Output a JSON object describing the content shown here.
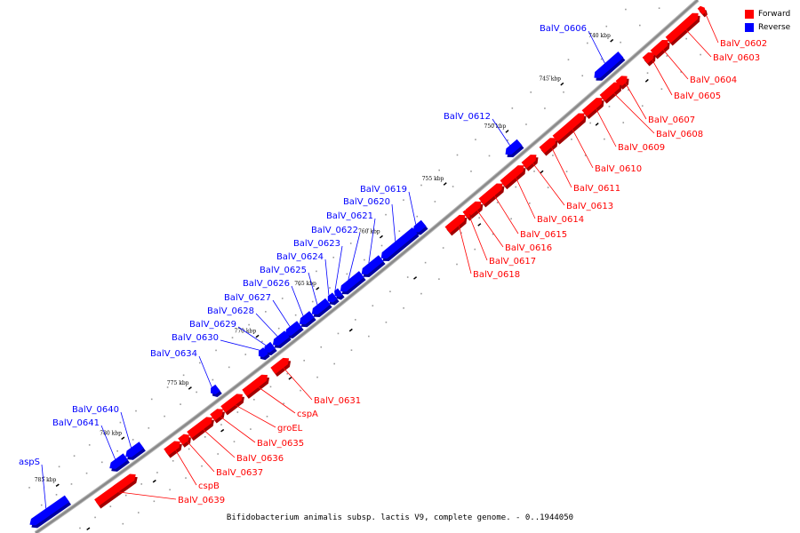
{
  "colors": {
    "forward": "#ff0000",
    "reverse": "#0000ff",
    "backbone": "#8a8a8a"
  },
  "legend": {
    "forward": "Forward",
    "reverse": "Reverse"
  },
  "caption": "Bifidobacterium animalis subsp. lactis V9, complete genome. - 0..1944050",
  "ticks": [
    "740 kbp",
    "745 kbp",
    "750 kbp",
    "755 kbp",
    "760 kbp",
    "765 kbp",
    "770 kbp",
    "775 kbp",
    "780 kbp",
    "785 kbp"
  ],
  "forward_genes": [
    "BalV_0602",
    "BalV_0603",
    "BalV_0604",
    "BalV_0605",
    "BalV_0607",
    "BalV_0608",
    "BalV_0609",
    "BalV_0610",
    "BalV_0611",
    "BalV_0613",
    "BalV_0614",
    "BalV_0615",
    "BalV_0616",
    "BalV_0617",
    "BalV_0618",
    "BalV_0631",
    "cspA",
    "groEL",
    "BalV_0635",
    "BalV_0636",
    "BalV_0637",
    "cspB",
    "BalV_0639"
  ],
  "reverse_genes": [
    "BalV_0606",
    "BalV_0612",
    "BalV_0619",
    "BalV_0620",
    "BalV_0621",
    "BalV_0622",
    "BalV_0623",
    "BalV_0624",
    "BalV_0625",
    "BalV_0626",
    "BalV_0627",
    "BalV_0628",
    "BalV_0629",
    "BalV_0630",
    "BalV_0634",
    "BalV_0640",
    "BalV_0641",
    "aspS"
  ]
}
